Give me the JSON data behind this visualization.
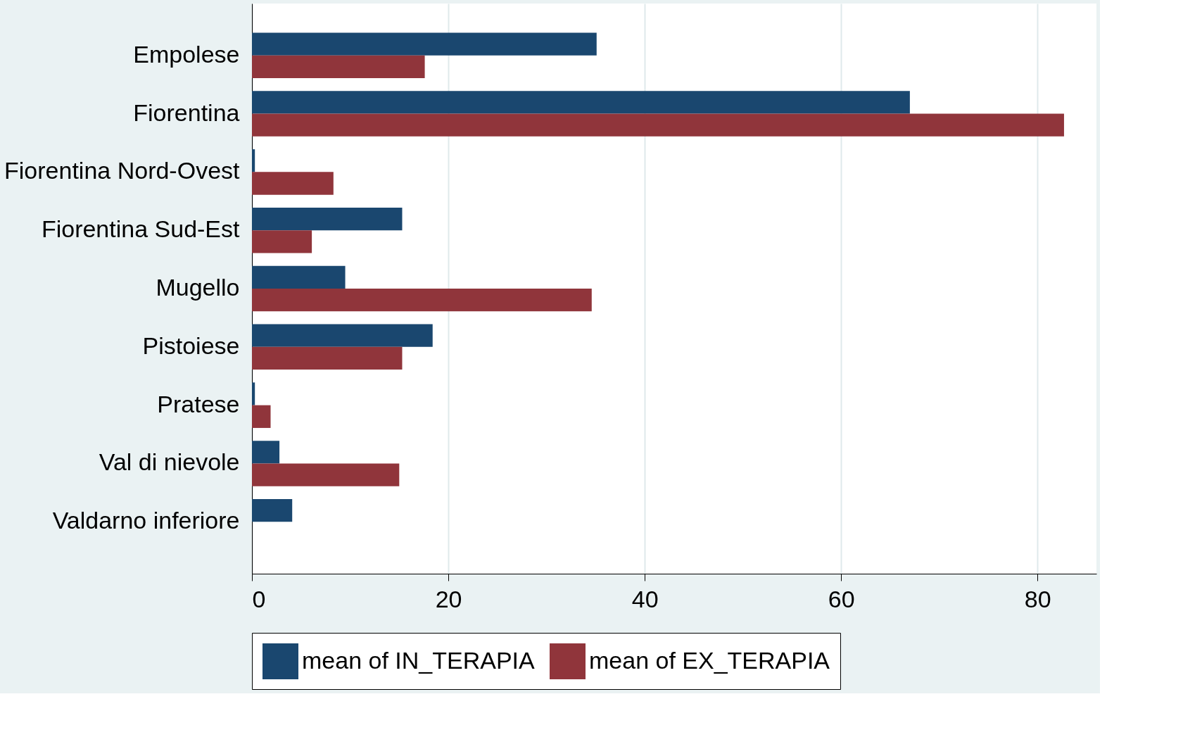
{
  "chart_data": {
    "type": "bar",
    "orientation": "horizontal",
    "categories": [
      "Empolese",
      "Fiorentina",
      "Fiorentina Nord-Ovest",
      "Fiorentina Sud-Est",
      "Mugello",
      "Pistoiese",
      "Pratese",
      "Val di nievole",
      "Valdarno inferiore"
    ],
    "series": [
      {
        "name": "mean of IN_TERAPIA",
        "color": "#1a476f",
        "values": [
          35.1,
          67.0,
          0.3,
          15.3,
          9.5,
          18.4,
          0.3,
          2.8,
          4.1
        ]
      },
      {
        "name": "mean of EX_TERAPIA",
        "color": "#90353b",
        "values": [
          17.6,
          82.7,
          8.3,
          6.1,
          34.6,
          15.3,
          1.9,
          15.0,
          0
        ]
      }
    ],
    "xlim": [
      0,
      86
    ],
    "xticks": [
      0,
      20,
      40,
      60,
      80
    ],
    "grid": "x",
    "legend": "bottom"
  }
}
